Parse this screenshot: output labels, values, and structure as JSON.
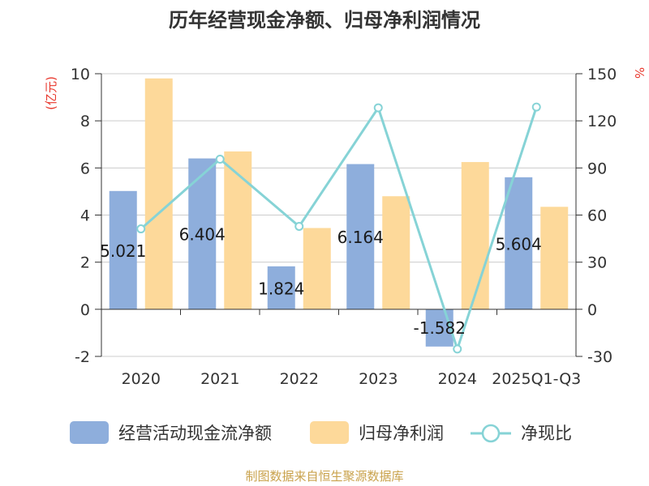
{
  "chart_data": {
    "type": "bar",
    "title": "历年经营现金净额、归母净利润情况",
    "categories": [
      "2020",
      "2021",
      "2022",
      "2023",
      "2024",
      "2025Q1-Q3"
    ],
    "left_unit": "(亿元)",
    "right_unit": "%",
    "ylim_left": [
      -2,
      10
    ],
    "yticks_left": [
      -2,
      0,
      2,
      4,
      6,
      8,
      10
    ],
    "ylim_right": [
      -30,
      150
    ],
    "yticks_right": [
      -30,
      0,
      30,
      60,
      90,
      120,
      150
    ],
    "series": [
      {
        "name": "经营活动现金流净额",
        "type": "bar",
        "axis": "left",
        "color": "#8eaedc",
        "values": [
          5.021,
          6.404,
          1.824,
          6.164,
          -1.582,
          5.604
        ],
        "labels": [
          "5.021",
          "6.404",
          "1.824",
          "6.164",
          "-1.582",
          "5.604"
        ]
      },
      {
        "name": "归母净利润",
        "type": "bar",
        "axis": "left",
        "color": "#fdd99a",
        "values": [
          9.8,
          6.7,
          3.45,
          4.8,
          6.25,
          4.35
        ]
      },
      {
        "name": "净现比",
        "type": "line",
        "axis": "right",
        "color": "#86d3d6",
        "values": [
          51.2,
          95.6,
          52.8,
          128.3,
          -25.3,
          128.8
        ]
      }
    ],
    "grid": true,
    "legend_position": "bottom",
    "source": "制图数据来自恒生聚源数据库"
  }
}
